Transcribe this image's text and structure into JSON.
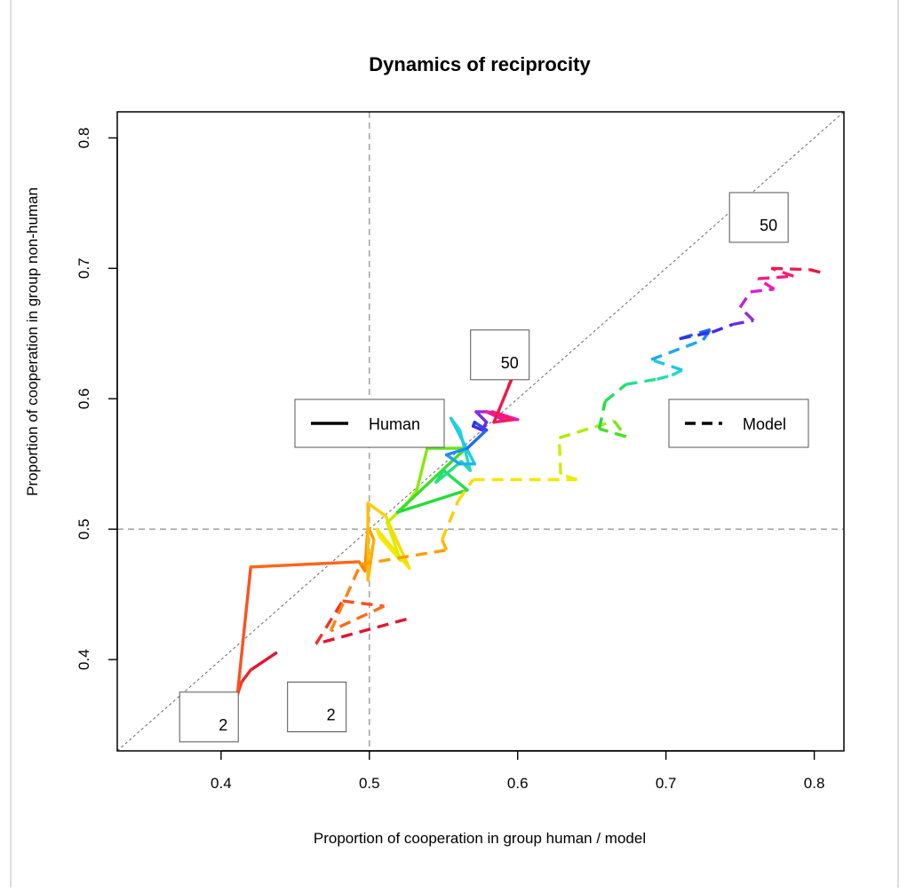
{
  "chart_data": {
    "type": "line",
    "title": "Dynamics of reciprocity",
    "xlabel": "Proportion of cooperation in group human / model",
    "ylabel": "Proportion of cooperation in group non-human",
    "xlim": [
      0.33,
      0.82
    ],
    "ylim": [
      0.33,
      0.82
    ],
    "xticks": [
      0.4,
      0.5,
      0.6,
      0.7,
      0.8
    ],
    "yticks": [
      0.4,
      0.5,
      0.6,
      0.7,
      0.8
    ],
    "xtick_labels": [
      "0.4",
      "0.5",
      "0.6",
      "0.7",
      "0.8"
    ],
    "ytick_labels": [
      "0.4",
      "0.5",
      "0.6",
      "0.7",
      "0.8"
    ],
    "reference_lines": [
      {
        "kind": "vertical",
        "x": 0.5,
        "style": "dashed"
      },
      {
        "kind": "horizontal",
        "y": 0.5,
        "style": "dashed"
      },
      {
        "kind": "diagonal",
        "from": [
          0.33,
          0.33
        ],
        "to": [
          0.82,
          0.82
        ],
        "style": "dotted"
      }
    ],
    "color_gradient": [
      "#e8122f",
      "#ff5a1f",
      "#ff9a00",
      "#ffd200",
      "#f2ef00",
      "#a8ee00",
      "#22dd2a",
      "#22e08a",
      "#22d8dd",
      "#1e8cff",
      "#2a2ae6",
      "#8a2be6",
      "#e61ad8",
      "#ff1a6e",
      "#e61a3a"
    ],
    "series": [
      {
        "name": "Human",
        "style": "solid",
        "start_label": "2",
        "end_label": "50",
        "points": [
          [
            0.437,
            0.405
          ],
          [
            0.42,
            0.392
          ],
          [
            0.414,
            0.383
          ],
          [
            0.411,
            0.373
          ],
          [
            0.42,
            0.471
          ],
          [
            0.493,
            0.475
          ],
          [
            0.497,
            0.468
          ],
          [
            0.499,
            0.502
          ],
          [
            0.503,
            0.492
          ],
          [
            0.499,
            0.461
          ],
          [
            0.499,
            0.52
          ],
          [
            0.511,
            0.51
          ],
          [
            0.527,
            0.47
          ],
          [
            0.505,
            0.5
          ],
          [
            0.507,
            0.494
          ],
          [
            0.521,
            0.476
          ],
          [
            0.512,
            0.505
          ],
          [
            0.525,
            0.519
          ],
          [
            0.532,
            0.53
          ],
          [
            0.539,
            0.562
          ],
          [
            0.565,
            0.562
          ],
          [
            0.519,
            0.513
          ],
          [
            0.566,
            0.53
          ],
          [
            0.55,
            0.545
          ],
          [
            0.545,
            0.536
          ],
          [
            0.562,
            0.552
          ],
          [
            0.568,
            0.545
          ],
          [
            0.561,
            0.576
          ],
          [
            0.555,
            0.585
          ],
          [
            0.571,
            0.55
          ],
          [
            0.561,
            0.55
          ],
          [
            0.552,
            0.557
          ],
          [
            0.566,
            0.562
          ],
          [
            0.579,
            0.576
          ],
          [
            0.571,
            0.582
          ],
          [
            0.57,
            0.579
          ],
          [
            0.576,
            0.576
          ],
          [
            0.579,
            0.582
          ],
          [
            0.572,
            0.59
          ],
          [
            0.579,
            0.59
          ],
          [
            0.59,
            0.584
          ],
          [
            0.6,
            0.584
          ],
          [
            0.586,
            0.589
          ],
          [
            0.579,
            0.59
          ],
          [
            0.594,
            0.584
          ],
          [
            0.583,
            0.59
          ],
          [
            0.597,
            0.584
          ],
          [
            0.584,
            0.582
          ],
          [
            0.597,
            0.618
          ],
          [
            0.594,
            0.61
          ]
        ]
      },
      {
        "name": "Model",
        "style": "dashed",
        "start_label": "2",
        "end_label": "50",
        "points": [
          [
            0.525,
            0.431
          ],
          [
            0.464,
            0.412
          ],
          [
            0.482,
            0.445
          ],
          [
            0.51,
            0.441
          ],
          [
            0.474,
            0.422
          ],
          [
            0.494,
            0.473
          ],
          [
            0.552,
            0.484
          ],
          [
            0.549,
            0.492
          ],
          [
            0.56,
            0.522
          ],
          [
            0.57,
            0.538
          ],
          [
            0.64,
            0.538
          ],
          [
            0.629,
            0.542
          ],
          [
            0.628,
            0.57
          ],
          [
            0.665,
            0.583
          ],
          [
            0.673,
            0.571
          ],
          [
            0.655,
            0.577
          ],
          [
            0.659,
            0.598
          ],
          [
            0.673,
            0.611
          ],
          [
            0.694,
            0.615
          ],
          [
            0.704,
            0.618
          ],
          [
            0.711,
            0.622
          ],
          [
            0.69,
            0.63
          ],
          [
            0.725,
            0.645
          ],
          [
            0.73,
            0.653
          ],
          [
            0.709,
            0.646
          ],
          [
            0.731,
            0.651
          ],
          [
            0.745,
            0.657
          ],
          [
            0.759,
            0.66
          ],
          [
            0.75,
            0.67
          ],
          [
            0.757,
            0.682
          ],
          [
            0.773,
            0.684
          ],
          [
            0.762,
            0.692
          ],
          [
            0.786,
            0.694
          ],
          [
            0.771,
            0.7
          ],
          [
            0.797,
            0.699
          ],
          [
            0.804,
            0.697
          ]
        ]
      }
    ],
    "legends": [
      {
        "label": "Human",
        "style": "solid",
        "position": "center-left"
      },
      {
        "label": "Model",
        "style": "dashed",
        "position": "center-right"
      }
    ],
    "annotations": [
      {
        "text": "2",
        "series": "Human",
        "marks": "start"
      },
      {
        "text": "2",
        "series": "Model",
        "marks": "start"
      },
      {
        "text": "50",
        "series": "Human",
        "marks": "end"
      },
      {
        "text": "50",
        "series": "Model",
        "marks": "end"
      }
    ]
  }
}
